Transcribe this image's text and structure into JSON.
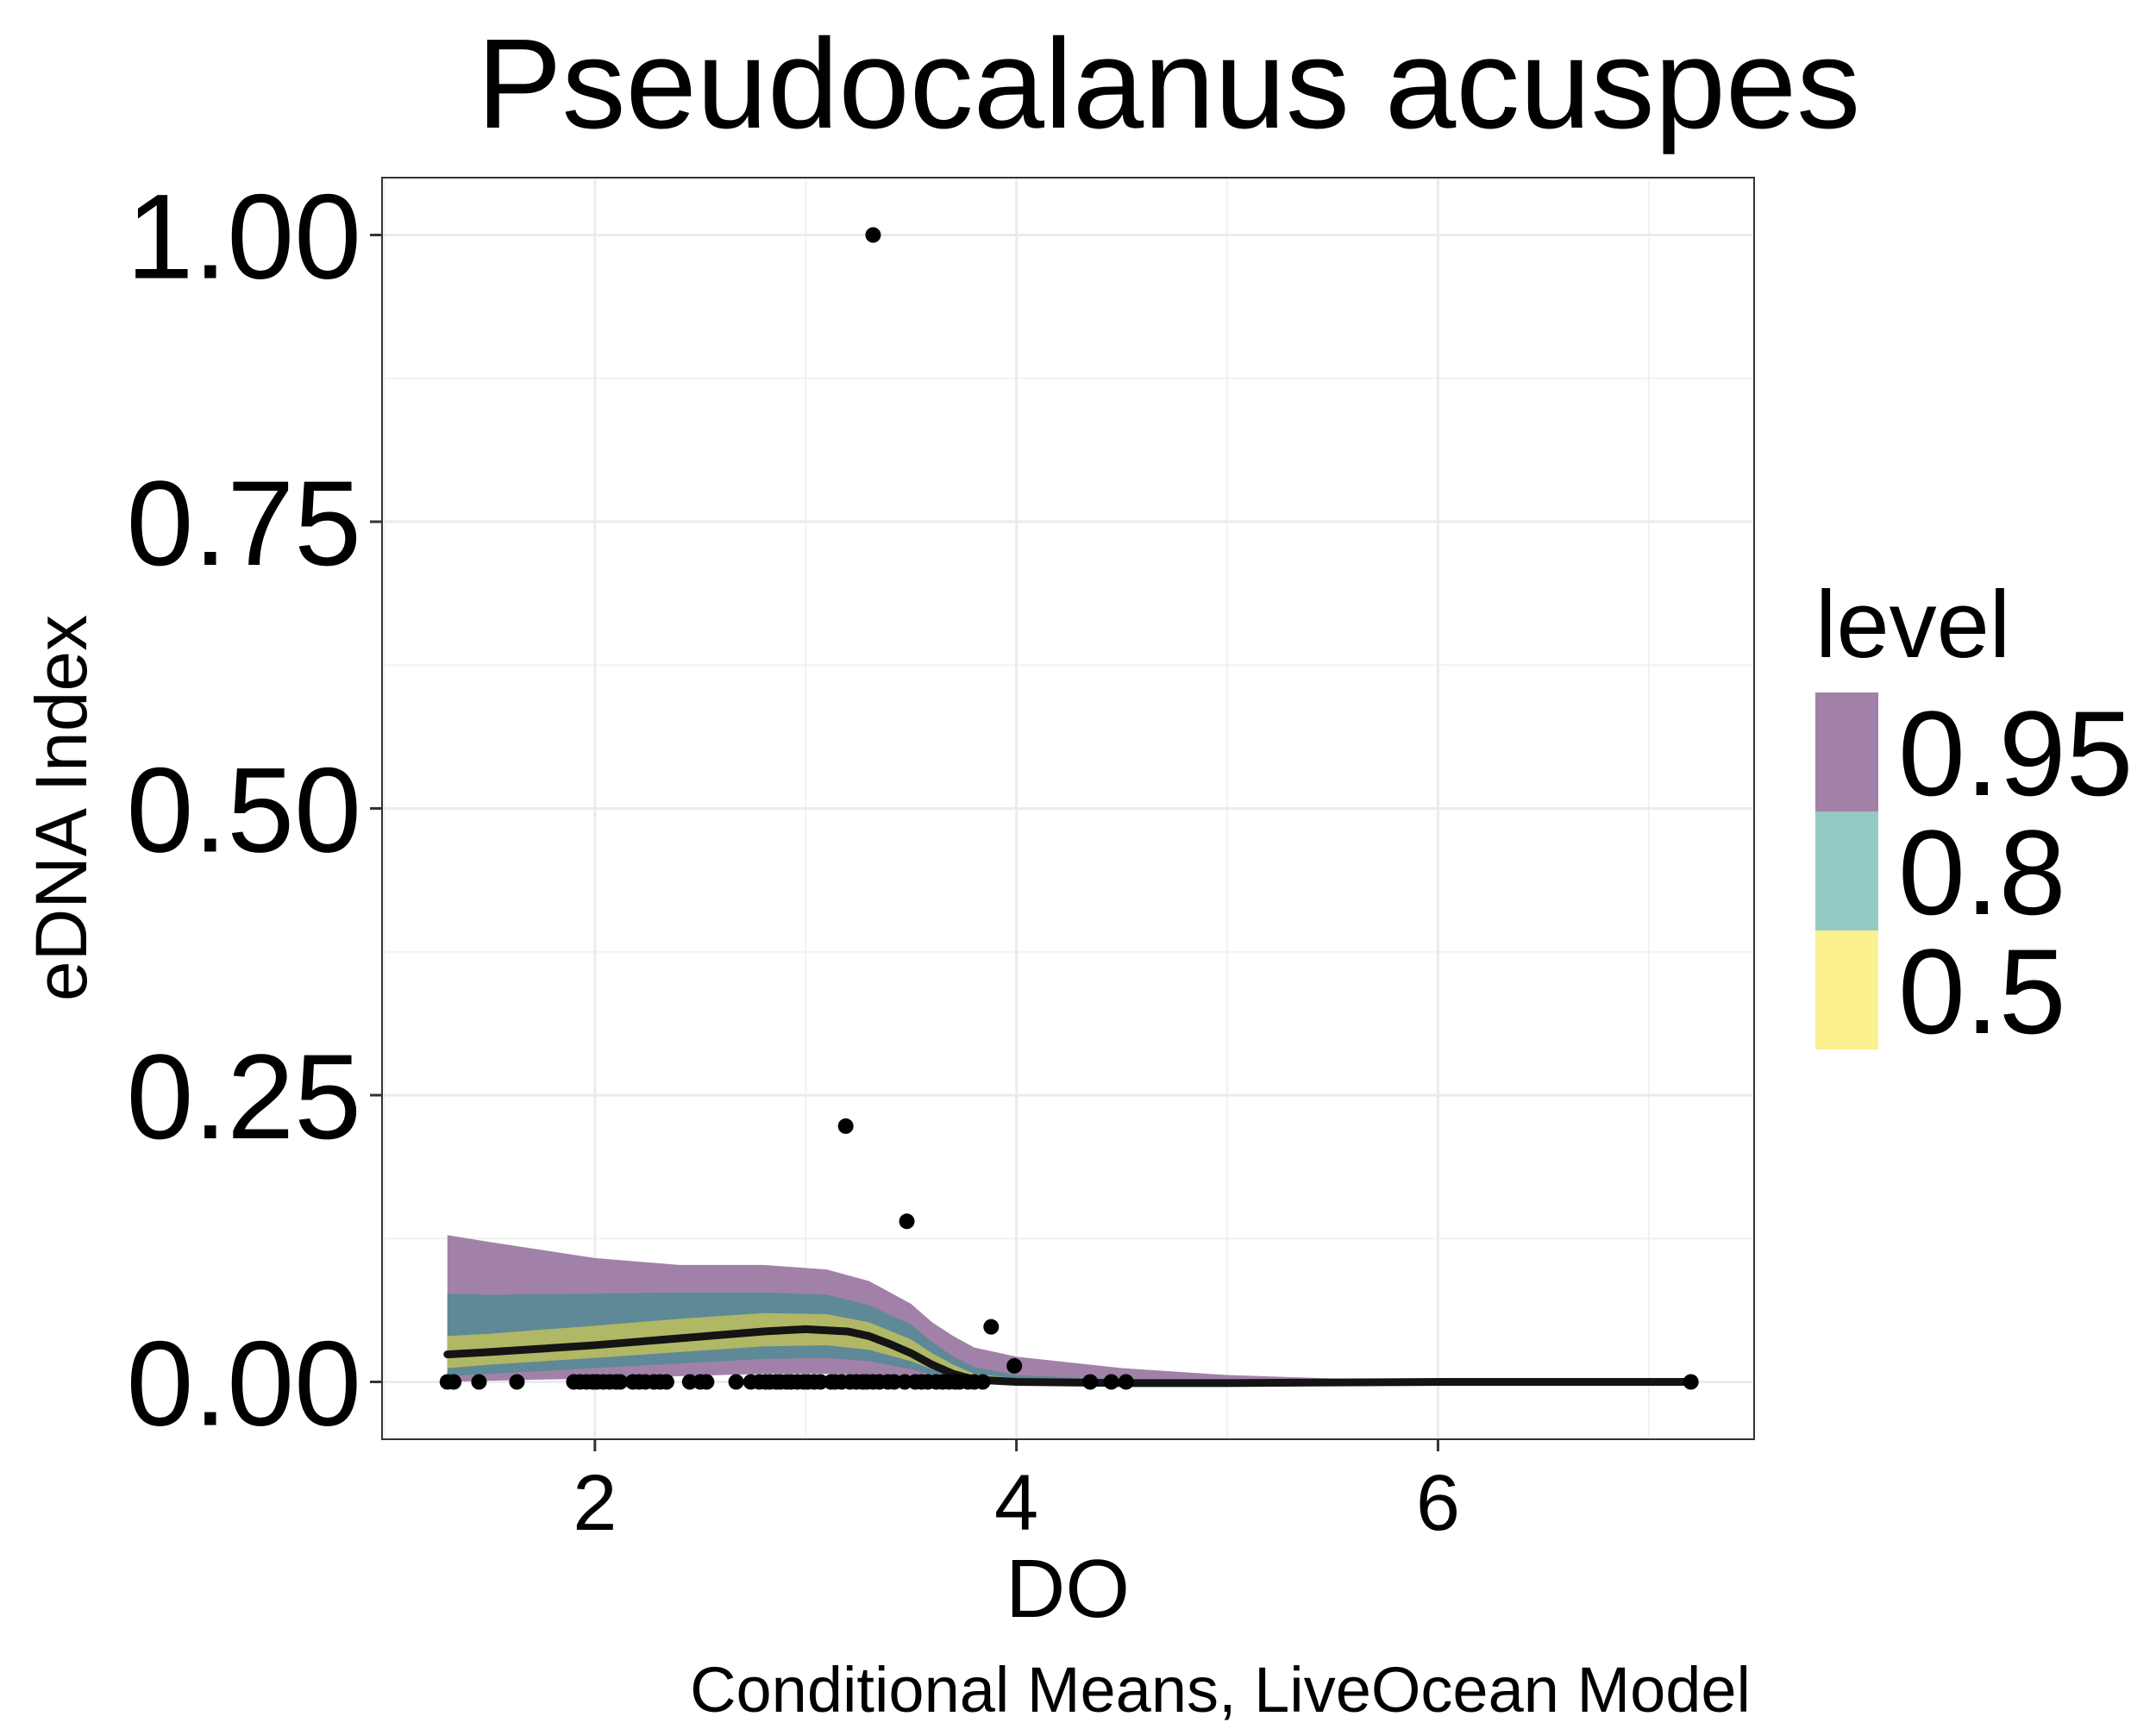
{
  "chart_data": {
    "type": "line",
    "title": "Pseudocalanus acuspes",
    "xlabel": "DO",
    "ylabel": "eDNA Index",
    "caption": "Conditional Means, LiveOcean Model",
    "xlim": [
      0.99,
      7.5
    ],
    "ylim": [
      -0.05,
      1.05
    ],
    "x_ticks": [
      2,
      4,
      6
    ],
    "x_tick_labels": [
      "2",
      "4",
      "6"
    ],
    "y_ticks": [
      0,
      0.25,
      0.5,
      0.75,
      1.0
    ],
    "y_tick_labels": [
      "0.00",
      "0.25",
      "0.50",
      "0.75",
      "1.00"
    ],
    "grid": true,
    "legend": {
      "title": "level",
      "position": "right",
      "entries": [
        {
          "label": "0.95",
          "color": "#a281a8"
        },
        {
          "label": "0.8",
          "color": "#95c9c3"
        },
        {
          "label": "0.5",
          "color": "#fbf18f"
        }
      ]
    },
    "bands": [
      {
        "level": "0.95",
        "color": "#a281a8",
        "x": [
          1.3,
          1.5,
          2.0,
          2.4,
          2.8,
          3.1,
          3.3,
          3.5,
          3.6,
          3.7,
          3.8,
          4.0,
          4.5,
          5.0,
          5.5,
          6.0,
          7.2
        ],
        "lower": [
          0.0,
          0.001,
          0.003,
          0.005,
          0.007,
          0.007,
          0.006,
          0.004,
          0.002,
          0.001,
          0.0,
          -0.001,
          -0.002,
          -0.002,
          -0.001,
          0.0,
          0.0
        ],
        "upper": [
          0.128,
          0.122,
          0.108,
          0.102,
          0.102,
          0.098,
          0.088,
          0.068,
          0.052,
          0.04,
          0.03,
          0.022,
          0.012,
          0.006,
          0.003,
          0.002,
          0.0
        ]
      },
      {
        "level": "0.8",
        "color": "#5f8997",
        "x": [
          1.3,
          1.5,
          2.0,
          2.4,
          2.8,
          3.1,
          3.3,
          3.5,
          3.6,
          3.7,
          3.8,
          4.0,
          4.5,
          5.0,
          5.5,
          6.0,
          7.2
        ],
        "lower": [
          0.005,
          0.007,
          0.012,
          0.016,
          0.02,
          0.021,
          0.018,
          0.011,
          0.006,
          0.003,
          0.001,
          0.0,
          -0.001,
          -0.001,
          0.0,
          0.0,
          0.0
        ],
        "upper": [
          0.077,
          0.076,
          0.077,
          0.078,
          0.078,
          0.076,
          0.067,
          0.05,
          0.035,
          0.022,
          0.013,
          0.006,
          0.002,
          0.001,
          0.0,
          0.0,
          0.0
        ]
      },
      {
        "level": "0.5",
        "color": "#b0b865",
        "x": [
          1.3,
          1.5,
          2.0,
          2.4,
          2.8,
          3.1,
          3.3,
          3.5,
          3.6,
          3.7,
          3.8,
          4.0,
          4.5,
          5.0,
          5.5,
          6.0,
          7.2
        ],
        "lower": [
          0.012,
          0.015,
          0.021,
          0.026,
          0.031,
          0.032,
          0.028,
          0.018,
          0.011,
          0.006,
          0.002,
          0.0,
          -0.001,
          -0.001,
          0.0,
          0.0,
          0.0
        ],
        "upper": [
          0.04,
          0.042,
          0.049,
          0.055,
          0.06,
          0.059,
          0.052,
          0.037,
          0.025,
          0.015,
          0.007,
          0.003,
          0.001,
          0.0,
          0.0,
          0.0,
          0.0
        ]
      }
    ],
    "series": [
      {
        "x": [
          1.3,
          1.5,
          2.0,
          2.4,
          2.8,
          3.0,
          3.2,
          3.3,
          3.4,
          3.5,
          3.6,
          3.7,
          3.8,
          4.0,
          4.5,
          5.0,
          6.0,
          7.2
        ],
        "values": [
          0.024,
          0.026,
          0.032,
          0.038,
          0.044,
          0.046,
          0.044,
          0.04,
          0.033,
          0.025,
          0.015,
          0.007,
          0.002,
          0.0,
          -0.001,
          -0.001,
          0.0,
          0.0
        ],
        "color": "#141414"
      }
    ],
    "points": {
      "x": [
        3.32,
        3.19,
        3.48,
        3.88,
        3.99,
        1.3,
        1.33,
        1.45,
        1.63,
        1.9,
        1.93,
        1.96,
        1.99,
        2.01,
        2.04,
        2.07,
        2.1,
        2.12,
        2.18,
        2.21,
        2.24,
        2.28,
        2.31,
        2.34,
        2.45,
        2.5,
        2.53,
        2.67,
        2.74,
        2.78,
        2.81,
        2.83,
        2.86,
        2.88,
        2.91,
        2.93,
        2.96,
        2.99,
        3.01,
        3.04,
        3.07,
        3.12,
        3.14,
        3.17,
        3.21,
        3.24,
        3.27,
        3.29,
        3.32,
        3.35,
        3.39,
        3.42,
        3.47,
        3.52,
        3.55,
        3.58,
        3.62,
        3.65,
        3.68,
        3.71,
        3.73,
        3.77,
        3.8,
        3.84,
        4.35,
        4.45,
        4.52,
        7.2
      ],
      "y": [
        1.0,
        0.223,
        0.14,
        0.048,
        0.014,
        0,
        0,
        0,
        0,
        0,
        0,
        0,
        0,
        0,
        0,
        0,
        0,
        0,
        0,
        0,
        0,
        0,
        0,
        0,
        0,
        0,
        0,
        0,
        0,
        0,
        0,
        0,
        0,
        0,
        0,
        0,
        0,
        0,
        0,
        0,
        0,
        0,
        0,
        0,
        0,
        0,
        0,
        0,
        0,
        0,
        0,
        0,
        0,
        0,
        0,
        0,
        0,
        0,
        0,
        0,
        0,
        0,
        0,
        0,
        0,
        0,
        0,
        0
      ]
    }
  }
}
